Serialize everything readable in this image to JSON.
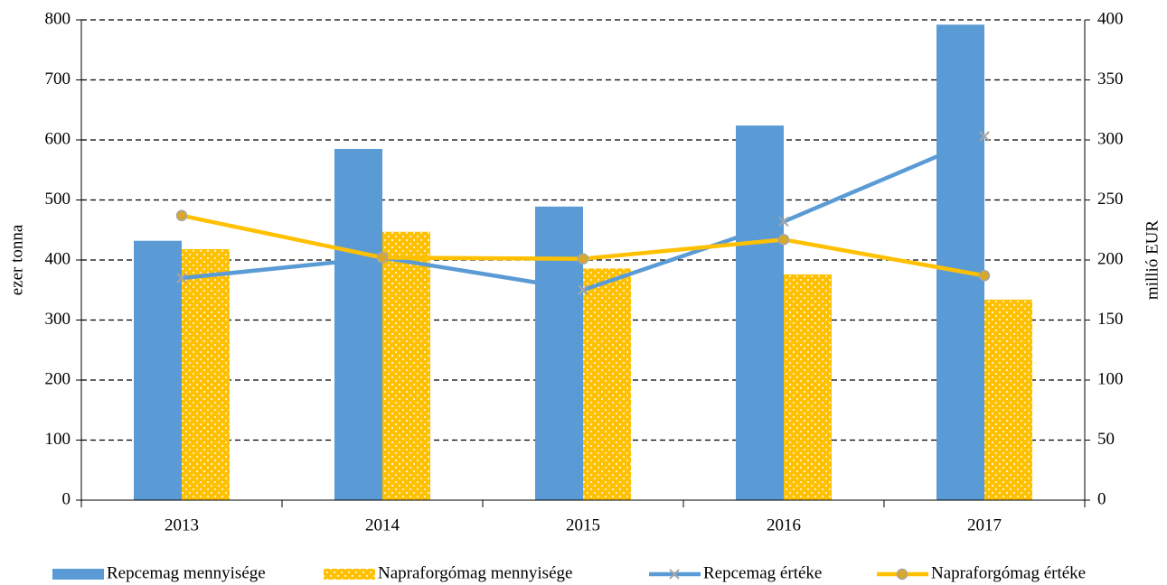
{
  "chart_data": {
    "type": "bar",
    "categories": [
      "2013",
      "2014",
      "2015",
      "2016",
      "2017"
    ],
    "ylabel": "ezer tonna",
    "y2label": "millió EUR",
    "ylim": [
      0,
      800
    ],
    "yticks": [
      0,
      100,
      200,
      300,
      400,
      500,
      600,
      700,
      800
    ],
    "y2lim": [
      0,
      400
    ],
    "y2ticks": [
      0,
      50,
      100,
      150,
      200,
      250,
      300,
      350,
      400
    ],
    "grid": true,
    "legend": "bottom",
    "series": [
      {
        "name": "Repcemag mennyisége",
        "type": "bar",
        "color": "#5b9bd5",
        "values": [
          432,
          585,
          489,
          624,
          792
        ]
      },
      {
        "name": "Napraforgómag mennyisége",
        "type": "bar",
        "color": "#ffc000",
        "pattern": "dots",
        "values": [
          418,
          447,
          386,
          376,
          334
        ]
      },
      {
        "name": "Repcemag értéke",
        "type": "line",
        "axis": "y2",
        "color": "#5b9bd5",
        "marker": "x",
        "values": [
          185,
          202,
          175,
          232,
          303
        ]
      },
      {
        "name": "Napraforgómag értéke",
        "type": "line",
        "axis": "y2",
        "color": "#ffc000",
        "marker": "circle",
        "values": [
          237,
          202,
          201,
          217,
          187
        ]
      }
    ]
  }
}
